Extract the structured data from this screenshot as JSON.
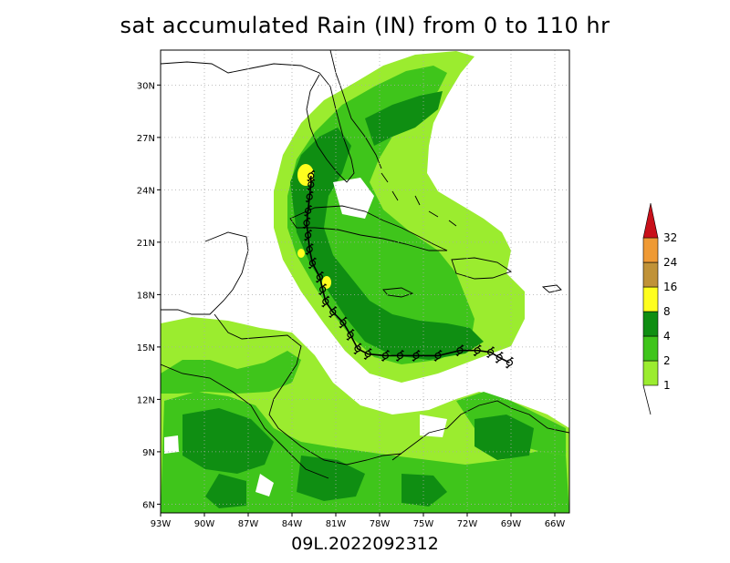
{
  "title": "sat accumulated Rain (IN) from 0 to 110 hr",
  "storm_id": "09L.2022092312",
  "map": {
    "lon_range": [
      -93,
      -65
    ],
    "lat_range": [
      5.5,
      32
    ],
    "lon_ticks": [
      {
        "value": -93,
        "label": "93W"
      },
      {
        "value": -90,
        "label": "90W"
      },
      {
        "value": -87,
        "label": "87W"
      },
      {
        "value": -84,
        "label": "84W"
      },
      {
        "value": -81,
        "label": "81W"
      },
      {
        "value": -78,
        "label": "78W"
      },
      {
        "value": -75,
        "label": "75W"
      },
      {
        "value": -72,
        "label": "72W"
      },
      {
        "value": -69,
        "label": "69W"
      },
      {
        "value": -66,
        "label": "66W"
      }
    ],
    "lat_ticks": [
      {
        "value": 6,
        "label": "6N"
      },
      {
        "value": 9,
        "label": "9N"
      },
      {
        "value": 12,
        "label": "12N"
      },
      {
        "value": 15,
        "label": "15N"
      },
      {
        "value": 18,
        "label": "18N"
      },
      {
        "value": 21,
        "label": "21N"
      },
      {
        "value": 24,
        "label": "24N"
      },
      {
        "value": 27,
        "label": "27N"
      },
      {
        "value": 30,
        "label": "30N"
      }
    ],
    "grid": true
  },
  "colorbar": {
    "levels": [
      {
        "label": "1",
        "color": "#9bec2f"
      },
      {
        "label": "2",
        "color": "#3fc51b"
      },
      {
        "label": "4",
        "color": "#0f8e12"
      },
      {
        "label": "8",
        "color": "#fefe1e"
      },
      {
        "label": "16",
        "color": "#c09238"
      },
      {
        "label": "24",
        "color": "#ef9a35"
      },
      {
        "label": "32",
        "color": "#c8101a"
      }
    ]
  },
  "track": [
    {
      "lon": -69.1,
      "lat": 14.1
    },
    {
      "lon": -69.8,
      "lat": 14.4
    },
    {
      "lon": -70.4,
      "lat": 14.7
    },
    {
      "lon": -71.3,
      "lat": 14.8
    },
    {
      "lon": -72.5,
      "lat": 14.8
    },
    {
      "lon": -74.0,
      "lat": 14.5
    },
    {
      "lon": -75.5,
      "lat": 14.5
    },
    {
      "lon": -76.6,
      "lat": 14.5
    },
    {
      "lon": -77.6,
      "lat": 14.5
    },
    {
      "lon": -78.8,
      "lat": 14.6
    },
    {
      "lon": -79.5,
      "lat": 14.9
    },
    {
      "lon": -80.0,
      "lat": 15.7
    },
    {
      "lon": -80.5,
      "lat": 16.4
    },
    {
      "lon": -81.2,
      "lat": 17.0
    },
    {
      "lon": -81.7,
      "lat": 17.6
    },
    {
      "lon": -81.9,
      "lat": 18.3
    },
    {
      "lon": -82.1,
      "lat": 19.0
    },
    {
      "lon": -82.6,
      "lat": 19.8
    },
    {
      "lon": -82.8,
      "lat": 20.6
    },
    {
      "lon": -82.9,
      "lat": 21.4
    },
    {
      "lon": -83.0,
      "lat": 22.1
    },
    {
      "lon": -82.9,
      "lat": 22.8
    },
    {
      "lon": -82.8,
      "lat": 23.6
    },
    {
      "lon": -82.7,
      "lat": 24.3
    },
    {
      "lon": -82.7,
      "lat": 24.8
    }
  ]
}
